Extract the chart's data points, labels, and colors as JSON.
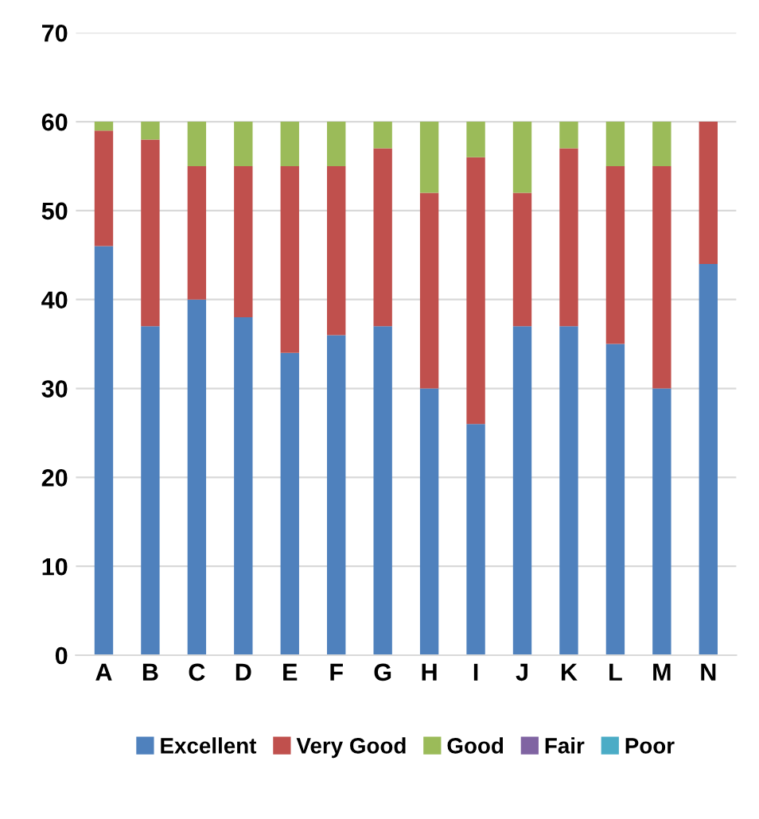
{
  "chart_data": {
    "type": "bar",
    "stacked": true,
    "categories": [
      "A",
      "B",
      "C",
      "D",
      "E",
      "F",
      "G",
      "H",
      "I",
      "J",
      "K",
      "L",
      "M",
      "N"
    ],
    "series": [
      {
        "name": "Excellent",
        "color": "#4f81bd",
        "values": [
          46,
          37,
          40,
          38,
          34,
          36,
          37,
          30,
          26,
          37,
          37,
          35,
          30,
          44
        ]
      },
      {
        "name": "Very Good",
        "color": "#c0504d",
        "values": [
          13,
          21,
          15,
          17,
          21,
          19,
          20,
          22,
          30,
          15,
          20,
          20,
          25,
          16
        ]
      },
      {
        "name": "Good",
        "color": "#9bbb59",
        "values": [
          1,
          2,
          5,
          5,
          5,
          5,
          3,
          8,
          4,
          8,
          3,
          5,
          5,
          0
        ]
      },
      {
        "name": "Fair",
        "color": "#8064a2",
        "values": [
          0,
          0,
          0,
          0,
          0,
          0,
          0,
          0,
          0,
          0,
          0,
          0,
          0,
          0
        ]
      },
      {
        "name": "Poor",
        "color": "#4bacc6",
        "values": [
          0,
          0,
          0,
          0,
          0,
          0,
          0,
          0,
          0,
          0,
          0,
          0,
          0,
          0
        ]
      }
    ],
    "ylim": [
      0,
      70
    ],
    "yticks": [
      0,
      10,
      20,
      30,
      40,
      50,
      60,
      70
    ],
    "grid": "y",
    "legend": "bottom"
  }
}
